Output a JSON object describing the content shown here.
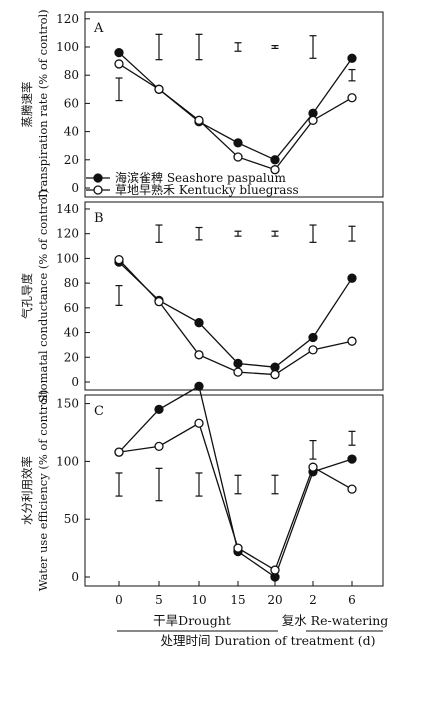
{
  "figure": {
    "x_ticks": [
      "0",
      "5",
      "10",
      "15",
      "20",
      "2",
      "6"
    ],
    "x_axis_title": "处理时间 Duration of treatment (d)",
    "phase_labels": {
      "drought": "干旱Drought",
      "rewater": "复水 Re-watering"
    }
  },
  "colors": {
    "line": "#111111",
    "filled_marker": "#111111",
    "open_marker": "#ffffff"
  },
  "chart_data": [
    {
      "type": "line",
      "panel_label": "A",
      "ylabel_cn": "蒸腾速率",
      "ylabel_en": "Transpiration rate (% of control)",
      "ylim": [
        0,
        120
      ],
      "yticks": [
        0,
        20,
        40,
        60,
        80,
        100,
        120
      ],
      "categories": [
        "0",
        "5",
        "10",
        "15",
        "20",
        "2",
        "6"
      ],
      "series": [
        {
          "name": "海滨雀稗 Seashore paspalum",
          "marker": "filled",
          "values": [
            96,
            70,
            47,
            32,
            20,
            53,
            92
          ]
        },
        {
          "name": "草地早熟禾 Kentucky bluegrass",
          "marker": "open",
          "values": [
            88,
            70,
            48,
            22,
            13,
            48,
            64
          ]
        }
      ],
      "error_bars": [
        {
          "cat": 0,
          "center": 70,
          "half": 8
        },
        {
          "cat": 1,
          "center": 100,
          "half": 9
        },
        {
          "cat": 2,
          "center": 100,
          "half": 9
        },
        {
          "cat": 3,
          "center": 100,
          "half": 3
        },
        {
          "cat": 4,
          "center": 100,
          "half": 1
        },
        {
          "cat": 5,
          "center": 100,
          "half": 8
        },
        {
          "cat": 6,
          "center": 80,
          "half": 4
        }
      ],
      "legend_position": "bottom-left"
    },
    {
      "type": "line",
      "panel_label": "B",
      "ylabel_cn": "气孔导度",
      "ylabel_en": "Stomatal conductance (% of control)",
      "ylim": [
        0,
        140
      ],
      "yticks": [
        0,
        20,
        40,
        60,
        80,
        100,
        120,
        140
      ],
      "categories": [
        "0",
        "5",
        "10",
        "15",
        "20",
        "2",
        "6"
      ],
      "series": [
        {
          "name": "海滨雀稗 Seashore paspalum",
          "marker": "filled",
          "values": [
            97,
            66,
            48,
            15,
            12,
            36,
            84
          ]
        },
        {
          "name": "草地早熟禾 Kentucky bluegrass",
          "marker": "open",
          "values": [
            99,
            65,
            22,
            8,
            6,
            26,
            33
          ]
        }
      ],
      "error_bars": [
        {
          "cat": 0,
          "center": 70,
          "half": 8
        },
        {
          "cat": 1,
          "center": 120,
          "half": 7
        },
        {
          "cat": 2,
          "center": 120,
          "half": 5
        },
        {
          "cat": 3,
          "center": 120,
          "half": 2
        },
        {
          "cat": 4,
          "center": 120,
          "half": 2
        },
        {
          "cat": 5,
          "center": 120,
          "half": 7
        },
        {
          "cat": 6,
          "center": 120,
          "half": 6
        }
      ]
    },
    {
      "type": "line",
      "panel_label": "C",
      "ylabel_cn": "水分利用效率",
      "ylabel_en": "Water use efficiency (% of control)",
      "ylim": [
        0,
        180
      ],
      "yticks": [
        0,
        50,
        100,
        150
      ],
      "categories": [
        "0",
        "5",
        "10",
        "15",
        "20",
        "2",
        "6"
      ],
      "series": [
        {
          "name": "海滨雀稗 Seashore paspalum",
          "marker": "filled",
          "values": [
            108,
            145,
            165,
            22,
            0,
            91,
            102
          ]
        },
        {
          "name": "草地早熟禾 Kentucky bluegrass",
          "marker": "open",
          "values": [
            108,
            113,
            133,
            25,
            6,
            95,
            76
          ]
        }
      ],
      "error_bars": [
        {
          "cat": 0,
          "center": 80,
          "half": 10
        },
        {
          "cat": 1,
          "center": 80,
          "half": 14
        },
        {
          "cat": 2,
          "center": 80,
          "half": 10
        },
        {
          "cat": 3,
          "center": 80,
          "half": 8
        },
        {
          "cat": 4,
          "center": 80,
          "half": 8
        },
        {
          "cat": 5,
          "center": 110,
          "half": 8
        },
        {
          "cat": 6,
          "center": 120,
          "half": 6
        }
      ]
    }
  ]
}
